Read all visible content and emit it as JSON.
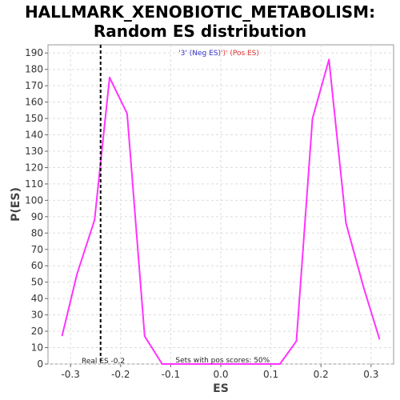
{
  "chart_data": {
    "type": "line",
    "title_line1": "HALLMARK_XENOBIOTIC_METABOLISM:",
    "title_line2": "Random ES distribution",
    "xlabel": "ES",
    "ylabel": "P(ES)",
    "xlim": [
      -0.345,
      0.345
    ],
    "ylim": [
      0,
      195
    ],
    "xticks": [
      -0.3,
      -0.2,
      -0.1,
      0.0,
      0.1,
      0.2,
      0.3
    ],
    "xtick_labels": [
      "-0.3",
      "-0.2",
      "-0.1",
      "0.0",
      "0.1",
      "0.2",
      "0.3"
    ],
    "yticks": [
      0,
      10,
      20,
      30,
      40,
      50,
      60,
      70,
      80,
      90,
      100,
      110,
      120,
      130,
      140,
      150,
      160,
      170,
      180,
      190
    ],
    "grid": true,
    "series": [
      {
        "color": "#ff33ff",
        "x": [
          -0.317,
          -0.287,
          -0.252,
          -0.222,
          -0.187,
          -0.152,
          -0.117,
          0.118,
          0.151,
          0.183,
          0.216,
          0.25,
          0.285,
          0.317
        ],
        "y": [
          17,
          55,
          88,
          175,
          153,
          17,
          0,
          0,
          14,
          150,
          186,
          86,
          47,
          15
        ]
      }
    ],
    "real_es": -0.24,
    "legend": {
      "neg_text": "'3' (Neg ES)",
      "pos_text": "')' (Pos ES)",
      "neg_color": "#3333cc",
      "pos_color": "#dd3333"
    },
    "annotations": {
      "real_es_label": "Real ES -0.2",
      "pos_scores": "Sets with pos scores: 50%"
    }
  }
}
